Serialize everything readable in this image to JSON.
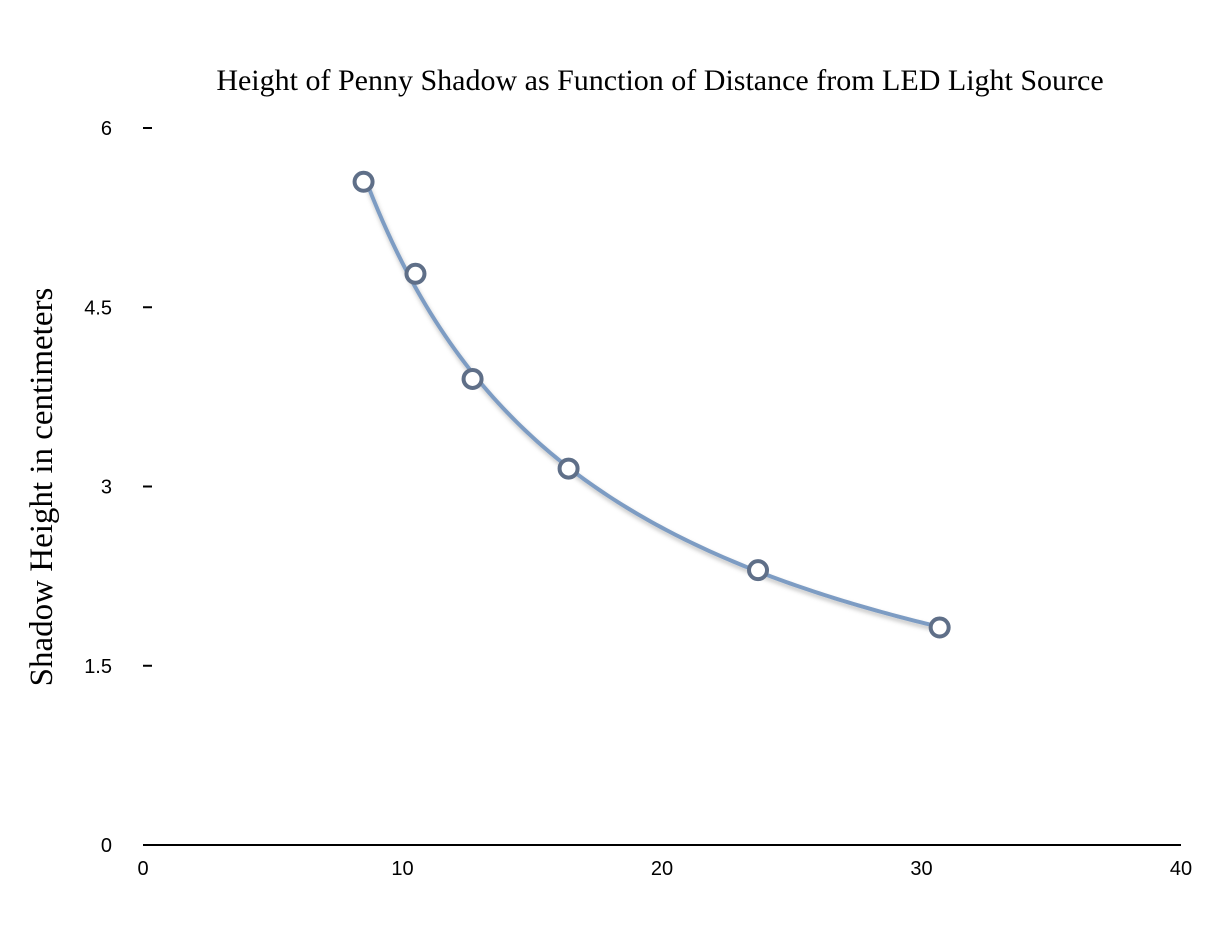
{
  "chart_data": {
    "type": "scatter",
    "title": "Height of Penny Shadow as Function of Distance from LED Light Source",
    "xlabel": "",
    "ylabel": "Shadow Height in centimeters",
    "xlim": [
      0,
      40
    ],
    "ylim": [
      0,
      6
    ],
    "x_ticks": [
      "0",
      "10",
      "20",
      "30",
      "40"
    ],
    "y_ticks": [
      "0",
      "1.5",
      "3",
      "4.5",
      "6"
    ],
    "grid": false,
    "legend": "none",
    "trendline": "power",
    "series": [
      {
        "x": [
          8.5,
          10.5,
          12.7,
          16.4,
          23.7,
          30.7
        ],
        "y": [
          5.55,
          4.78,
          3.9,
          3.15,
          2.3,
          1.82
        ]
      }
    ],
    "colors": {
      "marker": "#5f6f88",
      "trendline": "#7d9cc3",
      "axis": "#000000"
    }
  }
}
